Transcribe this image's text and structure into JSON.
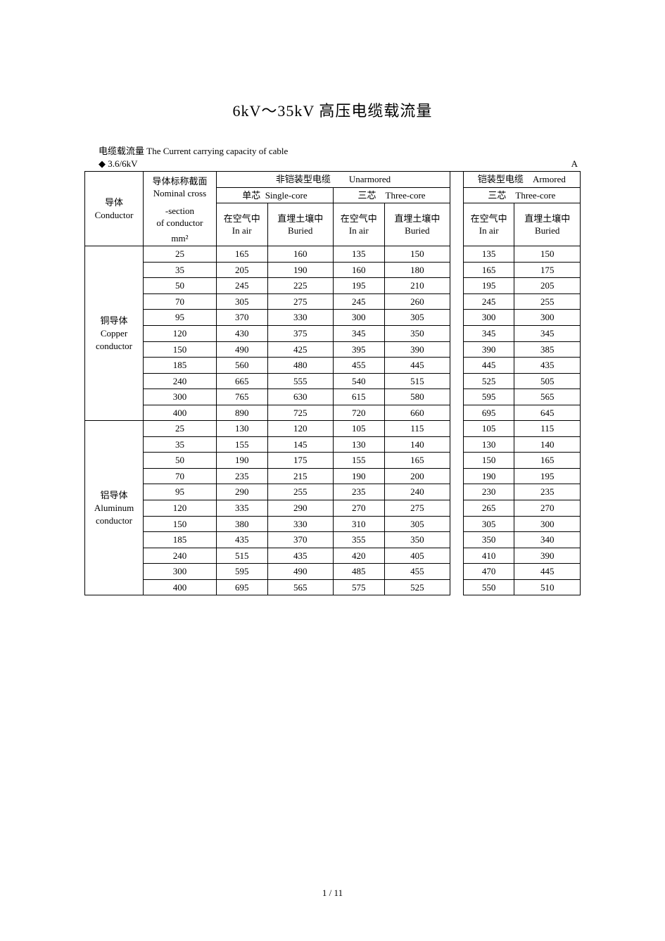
{
  "title": "6kV～35kV 高压电缆载流量",
  "caption": "电缆载流量 The Current carrying capacity of cable",
  "voltage_label": "3.6/6kV",
  "unit_label": "A",
  "headers": {
    "conductor_cn": "导体",
    "conductor_en": "Conductor",
    "section_l1": "导体标称截面",
    "section_l2": "Nominal cross",
    "section_l3": "-section",
    "section_l4": "of conductor",
    "section_unit": "mm²",
    "unarmored_cn": "非铠装型电缆",
    "unarmored_en": "Unarmored",
    "armored_cn": "铠装型电缆",
    "armored_en": "Armored",
    "single_core_cn": "单芯",
    "single_core_en": "Single-core",
    "three_core_cn": "三芯",
    "three_core_en": "Three-core",
    "in_air_cn": "在空气中",
    "in_air_en": "In air",
    "buried_cn": "直埋土壤中",
    "buried_en": "Buried"
  },
  "groups": [
    {
      "label_cn": "铜导体",
      "label_en1": "Copper",
      "label_en2": "conductor",
      "rows": [
        {
          "sec": "25",
          "v": [
            "165",
            "160",
            "135",
            "150",
            "135",
            "150"
          ]
        },
        {
          "sec": "35",
          "v": [
            "205",
            "190",
            "160",
            "180",
            "165",
            "175"
          ]
        },
        {
          "sec": "50",
          "v": [
            "245",
            "225",
            "195",
            "210",
            "195",
            "205"
          ]
        },
        {
          "sec": "70",
          "v": [
            "305",
            "275",
            "245",
            "260",
            "245",
            "255"
          ]
        },
        {
          "sec": "95",
          "v": [
            "370",
            "330",
            "300",
            "305",
            "300",
            "300"
          ]
        },
        {
          "sec": "120",
          "v": [
            "430",
            "375",
            "345",
            "350",
            "345",
            "345"
          ]
        },
        {
          "sec": "150",
          "v": [
            "490",
            "425",
            "395",
            "390",
            "390",
            "385"
          ]
        },
        {
          "sec": "185",
          "v": [
            "560",
            "480",
            "455",
            "445",
            "445",
            "435"
          ]
        },
        {
          "sec": "240",
          "v": [
            "665",
            "555",
            "540",
            "515",
            "525",
            "505"
          ]
        },
        {
          "sec": "300",
          "v": [
            "765",
            "630",
            "615",
            "580",
            "595",
            "565"
          ]
        },
        {
          "sec": "400",
          "v": [
            "890",
            "725",
            "720",
            "660",
            "695",
            "645"
          ]
        }
      ]
    },
    {
      "label_cn": "铝导体",
      "label_en1": "Aluminum",
      "label_en2": "conductor",
      "rows": [
        {
          "sec": "25",
          "v": [
            "130",
            "120",
            "105",
            "115",
            "105",
            "115"
          ]
        },
        {
          "sec": "35",
          "v": [
            "155",
            "145",
            "130",
            "140",
            "130",
            "140"
          ]
        },
        {
          "sec": "50",
          "v": [
            "190",
            "175",
            "155",
            "165",
            "150",
            "165"
          ]
        },
        {
          "sec": "70",
          "v": [
            "235",
            "215",
            "190",
            "200",
            "190",
            "195"
          ]
        },
        {
          "sec": "95",
          "v": [
            "290",
            "255",
            "235",
            "240",
            "230",
            "235"
          ]
        },
        {
          "sec": "120",
          "v": [
            "335",
            "290",
            "270",
            "275",
            "265",
            "270"
          ]
        },
        {
          "sec": "150",
          "v": [
            "380",
            "330",
            "310",
            "305",
            "305",
            "300"
          ]
        },
        {
          "sec": "185",
          "v": [
            "435",
            "370",
            "355",
            "350",
            "350",
            "340"
          ]
        },
        {
          "sec": "240",
          "v": [
            "515",
            "435",
            "420",
            "405",
            "410",
            "390"
          ]
        },
        {
          "sec": "300",
          "v": [
            "595",
            "490",
            "485",
            "455",
            "470",
            "445"
          ]
        },
        {
          "sec": "400",
          "v": [
            "695",
            "565",
            "575",
            "525",
            "550",
            "510"
          ]
        }
      ]
    }
  ],
  "footer": {
    "page": "1",
    "total": "11",
    "sep": " / "
  }
}
